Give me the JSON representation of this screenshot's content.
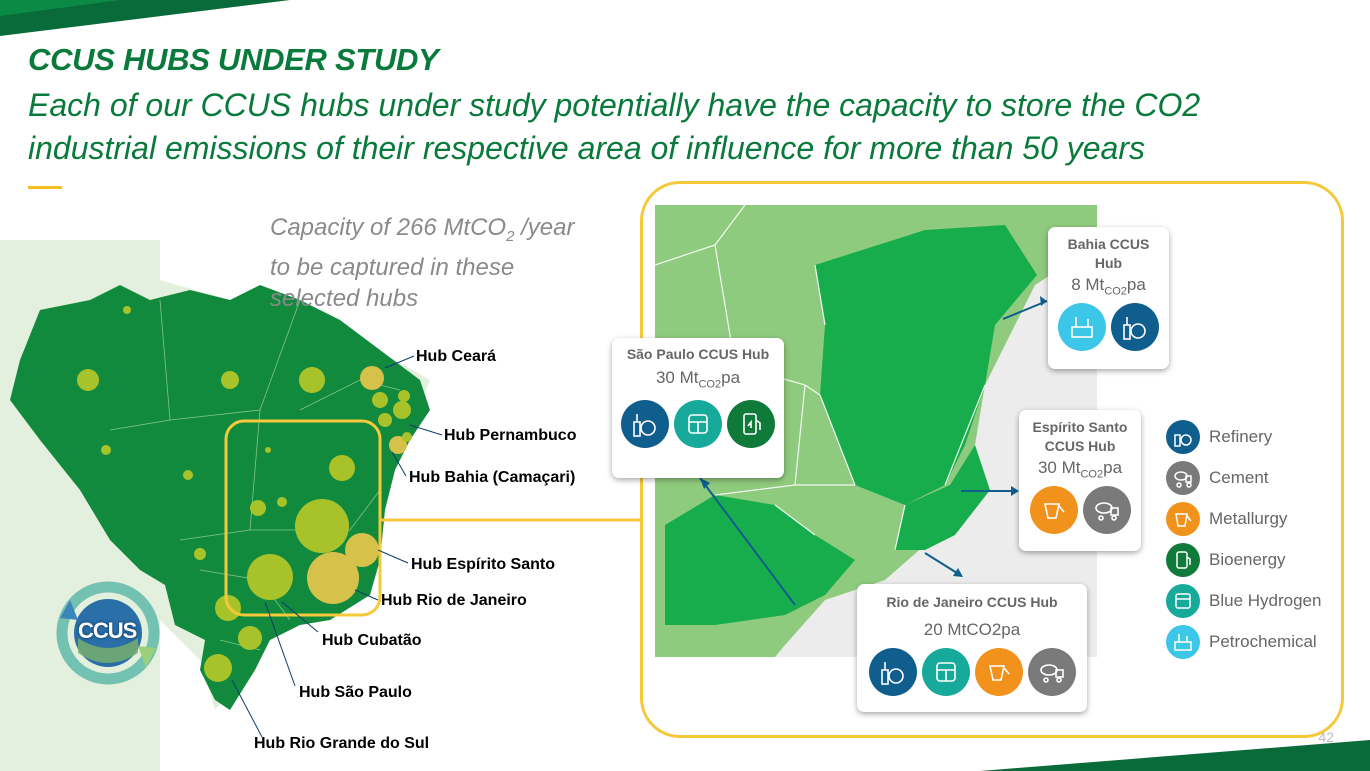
{
  "header": {
    "title": "CCUS HUBS UNDER STUDY",
    "subtitle": "Each of our CCUS hubs under study potentially have the capacity to store the CO2 industrial emissions of their respective area of influence for more than 50 years"
  },
  "capacity": {
    "prefix": "Capacity of 266 MtCO",
    "sub": "2",
    "suffix": " /year",
    "line2": "to be captured in these",
    "line3": "selected hubs"
  },
  "map_labels": {
    "ceara": "Hub Ceará",
    "pernambuco": "Hub Pernambuco",
    "bahia": "Hub Bahia (Camaçari)",
    "espirito_santo": "Hub Espírito Santo",
    "rio": "Hub Rio de Janeiro",
    "cubatao": "Hub Cubatão",
    "sao_paulo": "Hub São Paulo",
    "rio_grande": "Hub Rio Grande do Sul"
  },
  "logo": {
    "text": "CCUS"
  },
  "cards": {
    "sao_paulo": {
      "title": "São Paulo CCUS Hub",
      "value": "30 Mt",
      "unit_sub": "CO2",
      "unit_suffix": "pa"
    },
    "bahia": {
      "title_l1": "Bahia CCUS",
      "title_l2": "Hub",
      "value": "8 Mt",
      "unit_sub": "CO2",
      "unit_suffix": "pa"
    },
    "espirito_santo": {
      "title_l1": "Espírito Santo",
      "title_l2": "CCUS Hub",
      "value": "30 Mt",
      "unit_sub": "CO2",
      "unit_suffix": "pa"
    },
    "rio": {
      "title": "Rio de Janeiro CCUS Hub",
      "value": "20 MtCO2pa"
    }
  },
  "legend": [
    {
      "label": "Refinery",
      "color": "#0f5e8e",
      "icon": "refinery-icon"
    },
    {
      "label": "Cement",
      "color": "#7a7a7a",
      "icon": "cement-truck-icon"
    },
    {
      "label": "Metallurgy",
      "color": "#f0921b",
      "icon": "metallurgy-ladle-icon"
    },
    {
      "label": "Bioenergy",
      "color": "#0f7a3a",
      "icon": "bioenergy-pump-icon"
    },
    {
      "label": "Blue Hydrogen",
      "color": "#17a99a",
      "icon": "hydrogen-tank-icon"
    },
    {
      "label": "Petrochemical",
      "color": "#3cc6e8",
      "icon": "petrochemical-icon"
    }
  ],
  "page_number": "42"
}
